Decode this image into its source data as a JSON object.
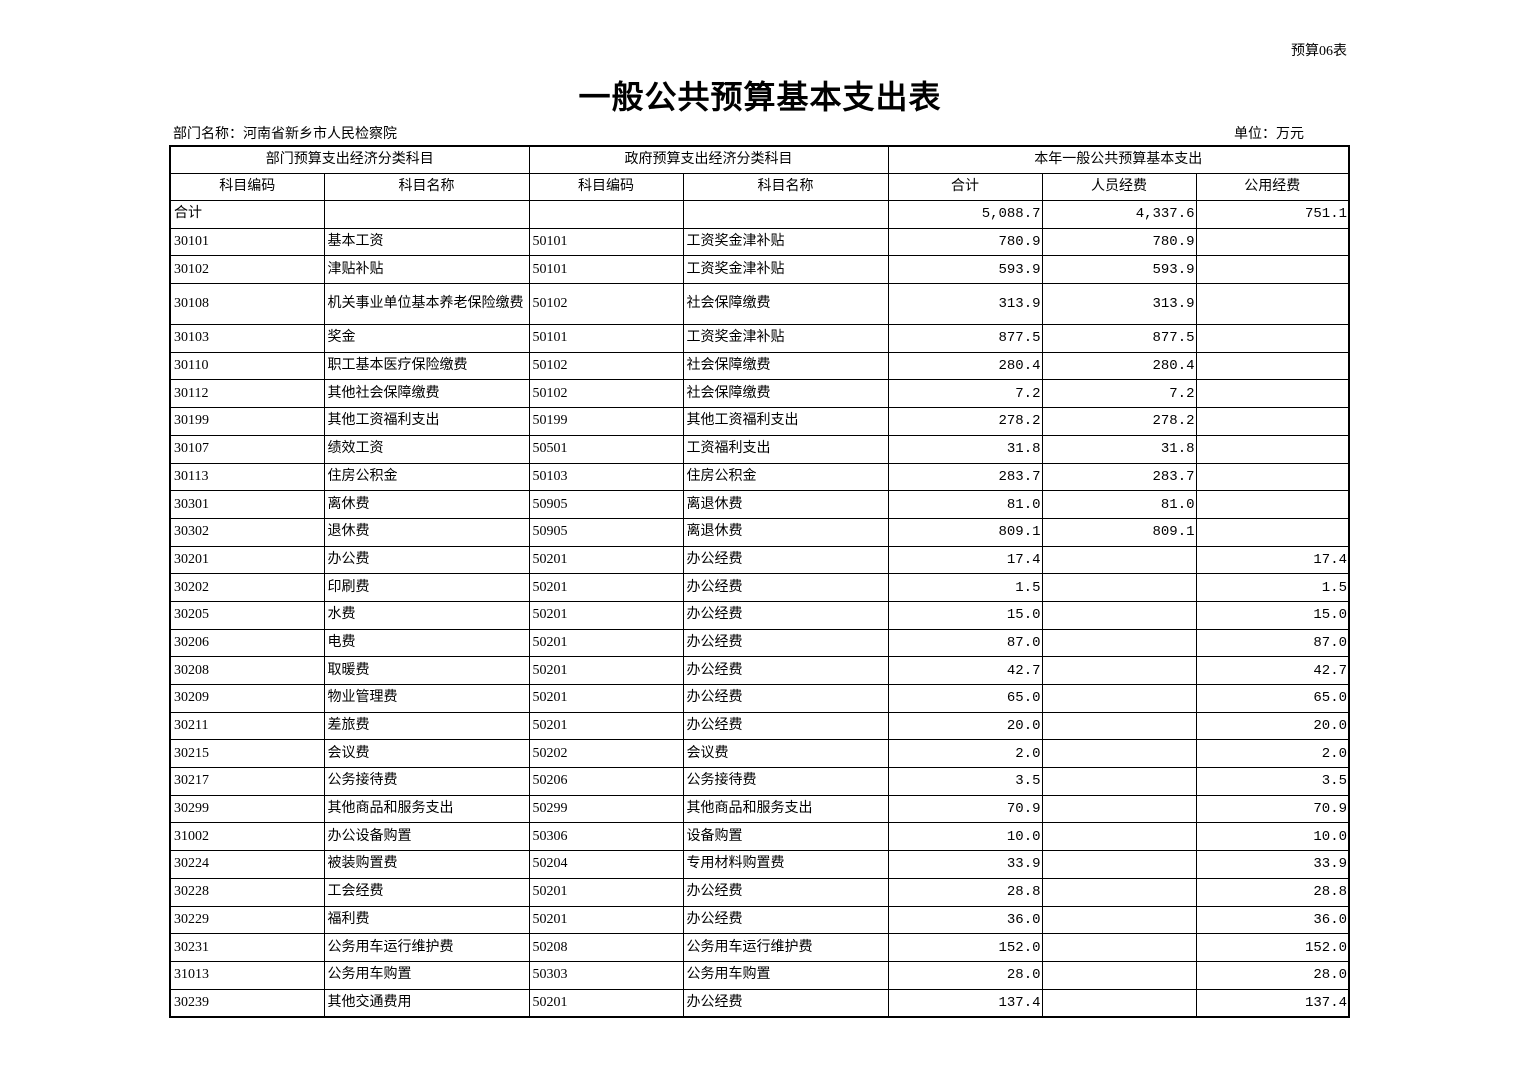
{
  "doc_tag": "预算06表",
  "title": "一般公共预算基本支出表",
  "department": "部门名称：河南省新乡市人民检察院",
  "unit": "单位：万元",
  "header": {
    "group1": "部门预算支出经济分类科目",
    "group2": "政府预算支出经济分类科目",
    "group3": "本年一般公共预算基本支出",
    "cols": [
      "科目编码",
      "科目名称",
      "科目编码",
      "科目名称",
      "合计",
      "人员经费",
      "公用经费"
    ]
  },
  "rows": [
    [
      "合计",
      "",
      "",
      "",
      "5,088.7",
      "4,337.6",
      "751.1"
    ],
    [
      "30101",
      "基本工资",
      "50101",
      "工资奖金津补贴",
      "780.9",
      "780.9",
      ""
    ],
    [
      "30102",
      "津贴补贴",
      "50101",
      "工资奖金津补贴",
      "593.9",
      "593.9",
      ""
    ],
    [
      "30108",
      "机关事业单位基本养老保险缴费",
      "50102",
      "社会保障缴费",
      "313.9",
      "313.9",
      ""
    ],
    [
      "30103",
      "奖金",
      "50101",
      "工资奖金津补贴",
      "877.5",
      "877.5",
      ""
    ],
    [
      "30110",
      "职工基本医疗保险缴费",
      "50102",
      "社会保障缴费",
      "280.4",
      "280.4",
      ""
    ],
    [
      "30112",
      "其他社会保障缴费",
      "50102",
      "社会保障缴费",
      "7.2",
      "7.2",
      ""
    ],
    [
      "30199",
      "其他工资福利支出",
      "50199",
      "其他工资福利支出",
      "278.2",
      "278.2",
      ""
    ],
    [
      "30107",
      "绩效工资",
      "50501",
      "工资福利支出",
      "31.8",
      "31.8",
      ""
    ],
    [
      "30113",
      "住房公积金",
      "50103",
      "住房公积金",
      "283.7",
      "283.7",
      ""
    ],
    [
      "30301",
      "离休费",
      "50905",
      "离退休费",
      "81.0",
      "81.0",
      ""
    ],
    [
      "30302",
      "退休费",
      "50905",
      "离退休费",
      "809.1",
      "809.1",
      ""
    ],
    [
      "30201",
      "办公费",
      "50201",
      "办公经费",
      "17.4",
      "",
      "17.4"
    ],
    [
      "30202",
      "印刷费",
      "50201",
      "办公经费",
      "1.5",
      "",
      "1.5"
    ],
    [
      "30205",
      "水费",
      "50201",
      "办公经费",
      "15.0",
      "",
      "15.0"
    ],
    [
      "30206",
      "电费",
      "50201",
      "办公经费",
      "87.0",
      "",
      "87.0"
    ],
    [
      "30208",
      "取暖费",
      "50201",
      "办公经费",
      "42.7",
      "",
      "42.7"
    ],
    [
      "30209",
      "物业管理费",
      "50201",
      "办公经费",
      "65.0",
      "",
      "65.0"
    ],
    [
      "30211",
      "差旅费",
      "50201",
      "办公经费",
      "20.0",
      "",
      "20.0"
    ],
    [
      "30215",
      "会议费",
      "50202",
      "会议费",
      "2.0",
      "",
      "2.0"
    ],
    [
      "30217",
      "公务接待费",
      "50206",
      "公务接待费",
      "3.5",
      "",
      "3.5"
    ],
    [
      "30299",
      "其他商品和服务支出",
      "50299",
      "其他商品和服务支出",
      "70.9",
      "",
      "70.9"
    ],
    [
      "31002",
      "办公设备购置",
      "50306",
      "设备购置",
      "10.0",
      "",
      "10.0"
    ],
    [
      "30224",
      "被装购置费",
      "50204",
      "专用材料购置费",
      "33.9",
      "",
      "33.9"
    ],
    [
      "30228",
      "工会经费",
      "50201",
      "办公经费",
      "28.8",
      "",
      "28.8"
    ],
    [
      "30229",
      "福利费",
      "50201",
      "办公经费",
      "36.0",
      "",
      "36.0"
    ],
    [
      "30231",
      "公务用车运行维护费",
      "50208",
      "公务用车运行维护费",
      "152.0",
      "",
      "152.0"
    ],
    [
      "31013",
      "公务用车购置",
      "50303",
      "公务用车购置",
      "28.0",
      "",
      "28.0"
    ],
    [
      "30239",
      "其他交通费用",
      "50201",
      "办公经费",
      "137.4",
      "",
      "137.4"
    ]
  ]
}
